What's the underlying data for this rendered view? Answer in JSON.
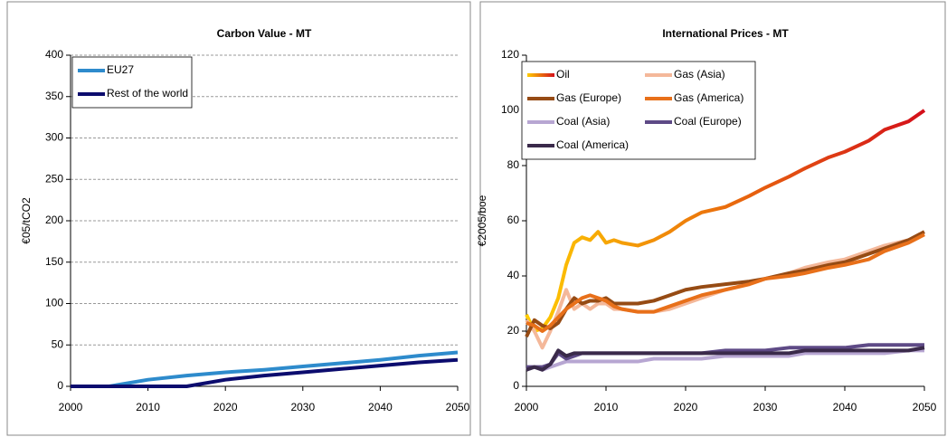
{
  "chart_data": [
    {
      "type": "line",
      "title": "Carbon Value - MT",
      "y_label": "€05/tCO2",
      "x": [
        2000,
        2005,
        2010,
        2015,
        2020,
        2025,
        2030,
        2035,
        2040,
        2045,
        2050
      ],
      "series": [
        {
          "name": "EU27",
          "color": "#2e8bcc",
          "values": [
            0,
            0,
            8,
            13,
            17,
            20,
            24,
            28,
            32,
            37,
            41
          ]
        },
        {
          "name": "Rest of the world",
          "color": "#0c0c6e",
          "values": [
            0,
            0,
            0,
            0,
            8,
            13,
            17,
            21,
            25,
            29,
            32
          ]
        }
      ],
      "xlim": [
        2000,
        2050
      ],
      "xticks": [
        2000,
        2010,
        2020,
        2030,
        2040,
        2050
      ],
      "ylim": [
        0,
        400
      ],
      "yticks": [
        0,
        50,
        100,
        150,
        200,
        250,
        300,
        350,
        400
      ],
      "grid": true,
      "legend": "top-left"
    },
    {
      "type": "line",
      "title": "International Prices - MT",
      "y_label": "€2005/boe",
      "x": [
        2000,
        2001,
        2002,
        2003,
        2004,
        2005,
        2006,
        2007,
        2008,
        2009,
        2010,
        2011,
        2012,
        2014,
        2016,
        2018,
        2020,
        2022,
        2025,
        2028,
        2030,
        2033,
        2035,
        2038,
        2040,
        2043,
        2045,
        2048,
        2050
      ],
      "series": [
        {
          "name": "Oil",
          "color": "#e0401a",
          "gradient": [
            "#ffcc00",
            "#d40f1a"
          ],
          "values": [
            26,
            20,
            21,
            25,
            32,
            44,
            52,
            54,
            53,
            56,
            52,
            53,
            52,
            51,
            53,
            56,
            60,
            63,
            65,
            69,
            72,
            76,
            79,
            83,
            85,
            89,
            93,
            96,
            100
          ]
        },
        {
          "name": "Gas (Asia)",
          "color": "#f4b89a",
          "values": [
            24,
            20,
            14,
            20,
            27,
            35,
            28,
            30,
            28,
            30,
            30,
            28,
            28,
            27,
            27,
            28,
            30,
            32,
            35,
            37,
            39,
            41,
            43,
            45,
            46,
            49,
            51,
            53,
            55
          ]
        },
        {
          "name": "Gas (Europe)",
          "color": "#964b14",
          "values": [
            18,
            24,
            22,
            21,
            23,
            28,
            32,
            30,
            31,
            31,
            32,
            30,
            30,
            30,
            31,
            33,
            35,
            36,
            37,
            38,
            39,
            41,
            42,
            44,
            45,
            48,
            50,
            53,
            56
          ]
        },
        {
          "name": "Gas (America)",
          "color": "#e8701a",
          "values": [
            23,
            22,
            20,
            22,
            25,
            28,
            30,
            32,
            33,
            32,
            31,
            29,
            28,
            27,
            27,
            29,
            31,
            33,
            35,
            37,
            39,
            40,
            41,
            43,
            44,
            46,
            49,
            52,
            55
          ]
        },
        {
          "name": "Coal (Asia)",
          "color": "#b7a6d2",
          "values": [
            6,
            7,
            6,
            7,
            8,
            9,
            9,
            9,
            9,
            9,
            9,
            9,
            9,
            9,
            10,
            10,
            10,
            10,
            11,
            11,
            11,
            11,
            12,
            12,
            12,
            12,
            12,
            13,
            13
          ]
        },
        {
          "name": "Coal (Europe)",
          "color": "#5e4a86",
          "values": [
            7,
            7,
            7,
            8,
            12,
            10,
            11,
            12,
            12,
            12,
            12,
            12,
            12,
            12,
            12,
            12,
            12,
            12,
            13,
            13,
            13,
            14,
            14,
            14,
            14,
            15,
            15,
            15,
            15
          ]
        },
        {
          "name": "Coal (America)",
          "color": "#3a2a4a",
          "values": [
            6,
            7,
            6,
            8,
            13,
            11,
            12,
            12,
            12,
            12,
            12,
            12,
            12,
            12,
            12,
            12,
            12,
            12,
            12,
            12,
            12,
            12,
            13,
            13,
            13,
            13,
            13,
            13,
            14
          ]
        }
      ],
      "xlim": [
        2000,
        2050
      ],
      "xticks": [
        2000,
        2010,
        2020,
        2030,
        2040,
        2050
      ],
      "ylim": [
        0,
        120
      ],
      "yticks": [
        0,
        20,
        40,
        60,
        80,
        100,
        120
      ],
      "grid": false,
      "legend": "top-left"
    }
  ]
}
